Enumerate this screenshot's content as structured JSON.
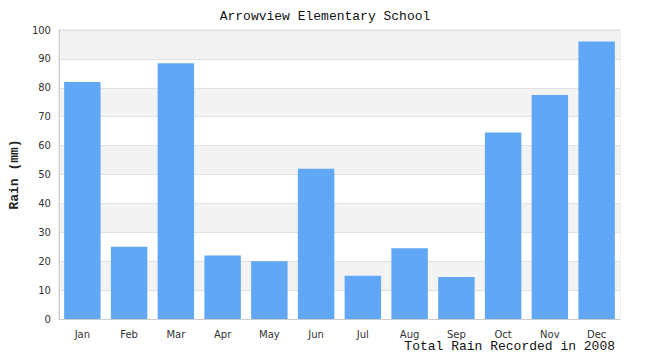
{
  "chart_data": {
    "type": "bar",
    "title": "Arrowview Elementary School",
    "x_label": "Total Rain Recorded in 2008",
    "y_label": "Rain (mm)",
    "categories": [
      "Jan",
      "Feb",
      "Mar",
      "Apr",
      "May",
      "Jun",
      "Jul",
      "Aug",
      "Sep",
      "Oct",
      "Nov",
      "Dec"
    ],
    "values": [
      82,
      25,
      88.5,
      22,
      20,
      52,
      15,
      24.5,
      14.5,
      64.5,
      77.5,
      96
    ],
    "color": "#60a8f5",
    "ylim": [
      0,
      100
    ],
    "yticks": [
      0,
      10,
      20,
      30,
      40,
      50,
      60,
      70,
      80,
      90,
      100
    ],
    "grid": true
  }
}
